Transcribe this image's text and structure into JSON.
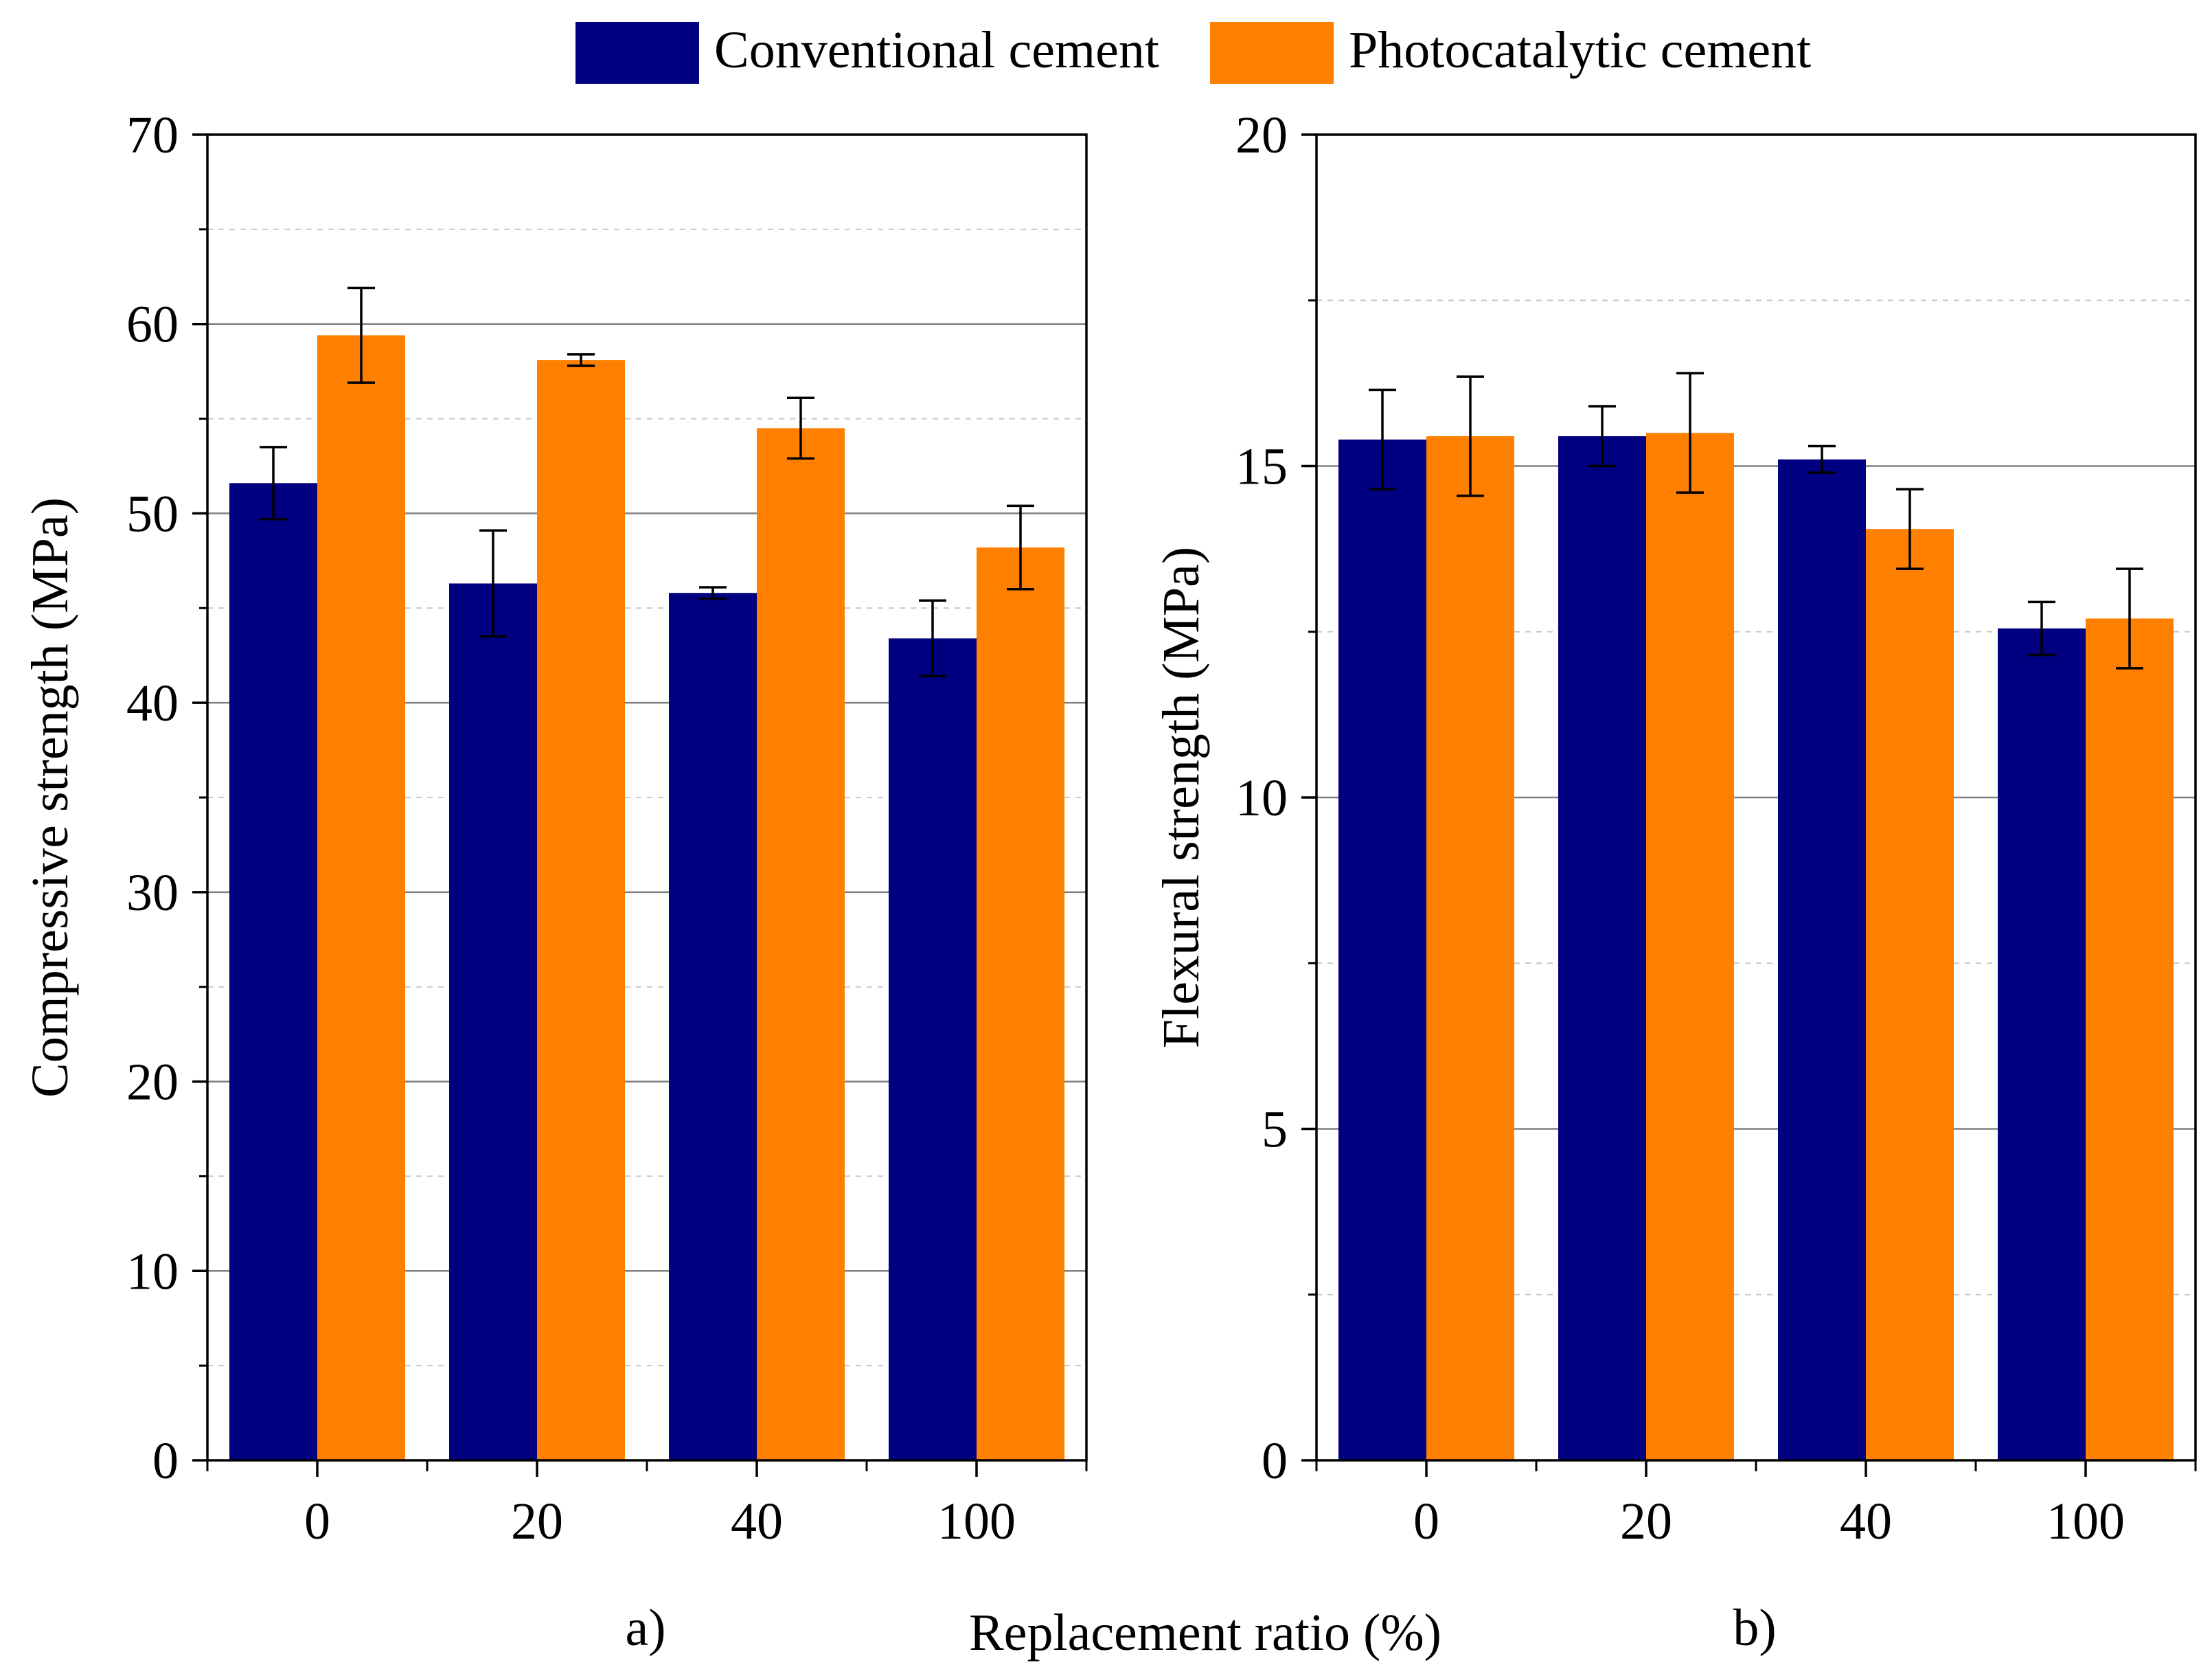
{
  "legend": {
    "entries": [
      {
        "label": "Conventional cement",
        "color": "#000080"
      },
      {
        "label": "Photocatalytic cement",
        "color": "#FF8000"
      }
    ]
  },
  "shared_xlabel": "Replacement ratio (%)",
  "colors": {
    "axis": "#000000",
    "major_grid": "#808080",
    "minor_grid": "#c8c8c8",
    "error_bar": "#000000"
  },
  "chart_data": [
    {
      "type": "bar",
      "panel_label": "a)",
      "ylabel": "Compressive strength (MPa)",
      "xlabel": "",
      "categories": [
        "0",
        "20",
        "40",
        "100"
      ],
      "ylim": [
        0,
        70
      ],
      "yticks": [
        "0",
        "10",
        "20",
        "30",
        "40",
        "50",
        "60",
        "70"
      ],
      "ytick_values": [
        0,
        10,
        20,
        30,
        40,
        50,
        60,
        70
      ],
      "grid": true,
      "minor_grid_step": 5,
      "series": [
        {
          "name": "Conventional cement",
          "values": [
            51.6,
            46.3,
            45.8,
            43.4
          ],
          "errors": [
            1.9,
            2.8,
            0.3,
            2.0
          ]
        },
        {
          "name": "Photocatalytic cement",
          "values": [
            59.4,
            58.1,
            54.5,
            48.2
          ],
          "errors": [
            2.5,
            0.3,
            1.6,
            2.2
          ]
        }
      ]
    },
    {
      "type": "bar",
      "panel_label": "b)",
      "ylabel": "Flexural strength (MPa)",
      "xlabel": "",
      "categories": [
        "0",
        "20",
        "40",
        "100"
      ],
      "ylim": [
        0,
        20
      ],
      "yticks": [
        "0",
        "5",
        "10",
        "15",
        "20"
      ],
      "ytick_values": [
        0,
        5,
        10,
        15,
        20
      ],
      "grid": true,
      "minor_grid_step": 2.5,
      "series": [
        {
          "name": "Conventional cement",
          "values": [
            15.4,
            15.45,
            15.1,
            12.55
          ],
          "errors": [
            0.75,
            0.45,
            0.2,
            0.4
          ]
        },
        {
          "name": "Photocatalytic cement",
          "values": [
            15.45,
            15.5,
            14.05,
            12.7
          ],
          "errors": [
            0.9,
            0.9,
            0.6,
            0.75
          ]
        }
      ]
    }
  ]
}
